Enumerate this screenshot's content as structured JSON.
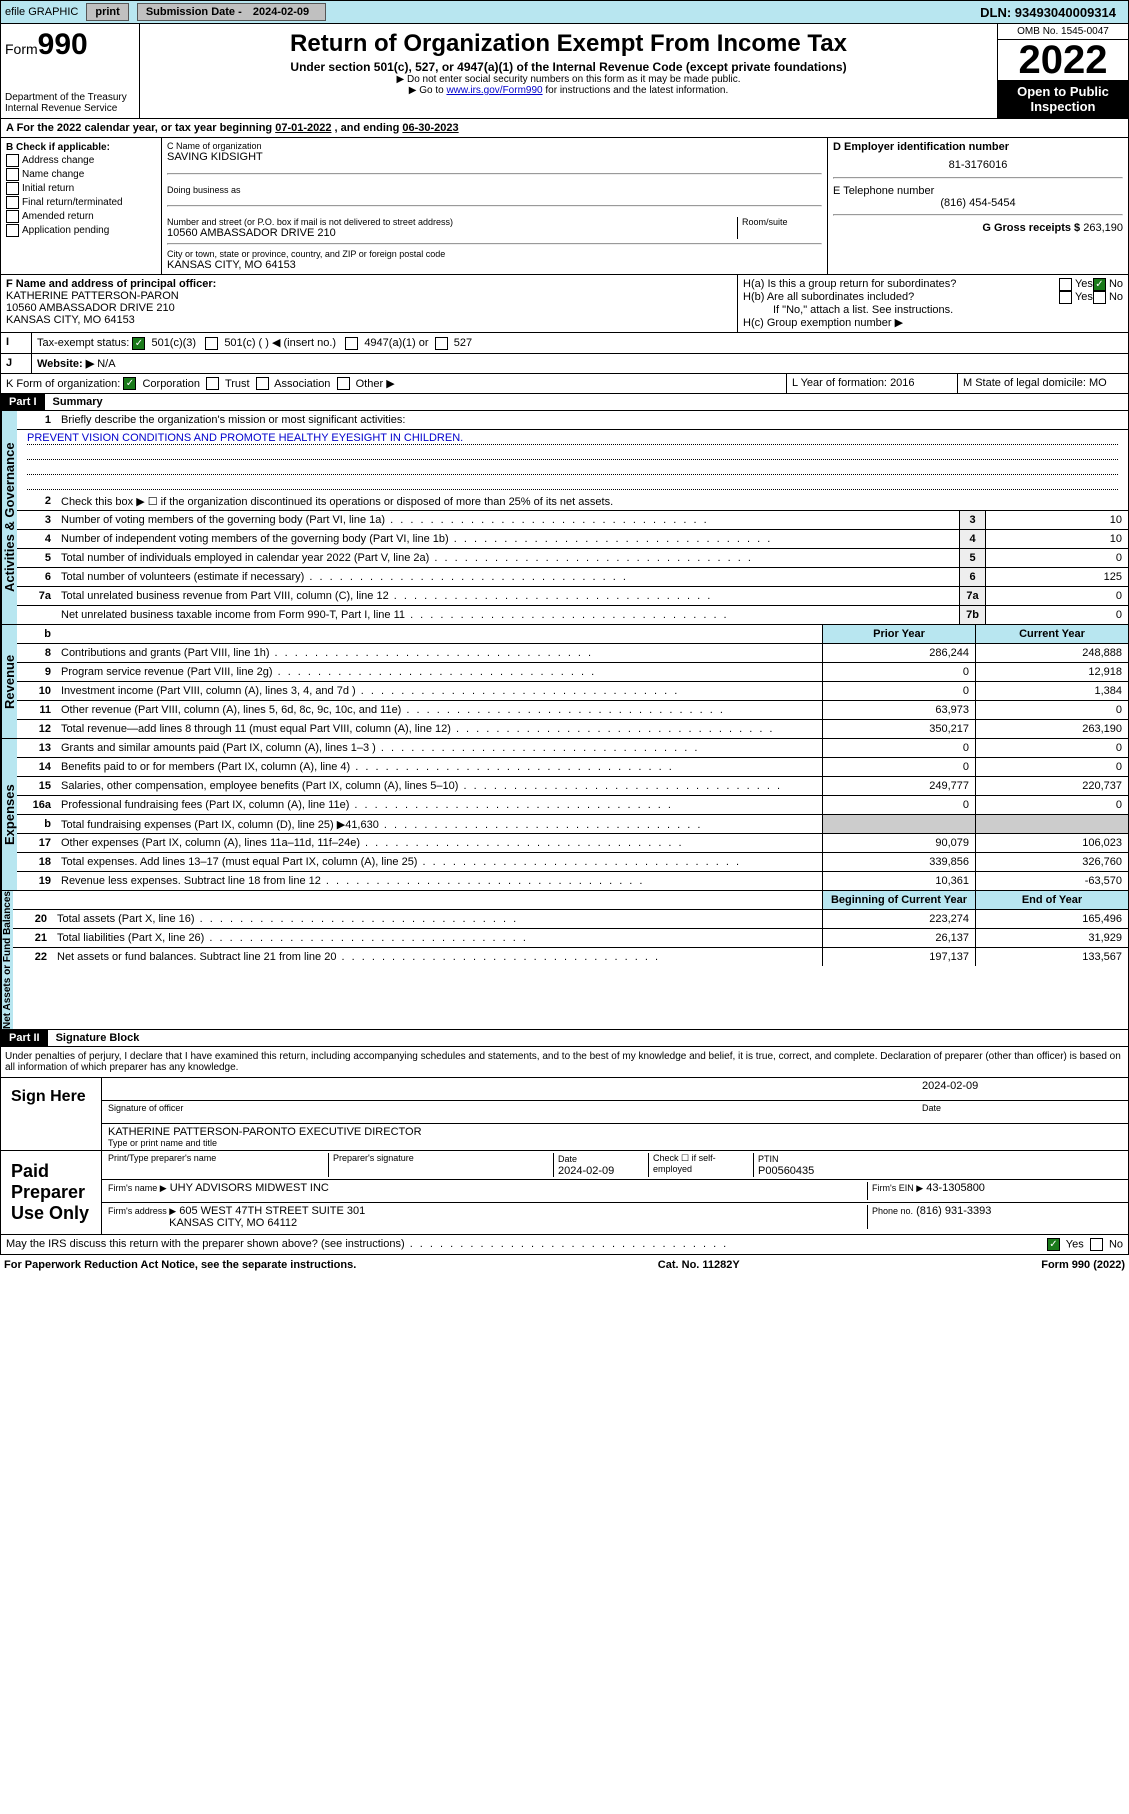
{
  "topbar": {
    "efile": "efile GRAPHIC",
    "print": "print",
    "subdate_lbl": "Submission Date - ",
    "subdate": "2024-02-09",
    "dln": "DLN: 93493040009314"
  },
  "hdr": {
    "form": "Form",
    "num": "990",
    "dept": "Department of the Treasury",
    "irs": "Internal Revenue Service",
    "title": "Return of Organization Exempt From Income Tax",
    "under": "Under section 501(c), 527, or 4947(a)(1) of the Internal Revenue Code (except private foundations)",
    "l1": "▶ Do not enter social security numbers on this form as it may be made public.",
    "l2_a": "▶ Go to ",
    "l2_link": "www.irs.gov/Form990",
    "l2_b": " for instructions and the latest information.",
    "omb": "OMB No. 1545-0047",
    "year": "2022",
    "inspect": "Open to Public Inspection"
  },
  "taxyear": {
    "a": "A For the 2022 calendar year, or tax year beginning ",
    "b": "07-01-2022",
    "c": " , and ending ",
    "d": "06-30-2023"
  },
  "B": {
    "hdr": "B Check if applicable:",
    "items": [
      "Address change",
      "Name change",
      "Initial return",
      "Final return/terminated",
      "Amended return",
      "Application pending"
    ]
  },
  "C": {
    "namelbl": "C Name of organization",
    "name": "SAVING KIDSIGHT",
    "dbalbl": "Doing business as",
    "addrlbl": "Number and street (or P.O. box if mail is not delivered to street address)",
    "roomlbl": "Room/suite",
    "addr": "10560 AMBASSADOR DRIVE 210",
    "citylbl": "City or town, state or province, country, and ZIP or foreign postal code",
    "city": "KANSAS CITY, MO  64153"
  },
  "D": {
    "lbl": "D Employer identification number",
    "val": "81-3176016"
  },
  "E": {
    "lbl": "E Telephone number",
    "val": "(816) 454-5454"
  },
  "G": {
    "lbl": "G Gross receipts $",
    "val": "263,190"
  },
  "F": {
    "lbl": "F  Name and address of principal officer:",
    "name": "KATHERINE PATTERSON-PARON",
    "addr": "10560 AMBASSADOR DRIVE 210",
    "city": "KANSAS CITY, MO  64153"
  },
  "H": {
    "a": "H(a)  Is this a group return for subordinates?",
    "b": "H(b)  Are all subordinates included?",
    "note": "If \"No,\" attach a list. See instructions.",
    "c": "H(c)  Group exemption number ▶",
    "yes": "Yes",
    "no": "No"
  },
  "I": {
    "lbl": "Tax-exempt status:",
    "o1": "501(c)(3)",
    "o2": "501(c) (   ) ◀ (insert no.)",
    "o3": "4947(a)(1) or",
    "o4": "527"
  },
  "J": {
    "lbl": "Website: ▶",
    "val": "N/A"
  },
  "K": {
    "lbl": "K Form of organization:",
    "o1": "Corporation",
    "o2": "Trust",
    "o3": "Association",
    "o4": "Other ▶"
  },
  "L": {
    "lbl": "L Year of formation:",
    "val": "2016"
  },
  "M": {
    "lbl": "M State of legal domicile:",
    "val": "MO"
  },
  "part1": {
    "hdr": "Part I",
    "title": "Summary"
  },
  "gov": {
    "l1": "Briefly describe the organization's mission or most significant activities:",
    "mission": "PREVENT VISION CONDITIONS AND PROMOTE HEALTHY EYESIGHT IN CHILDREN.",
    "l2": "Check this box ▶ ☐  if the organization discontinued its operations or disposed of more than 25% of its net assets.",
    "rows": [
      {
        "n": "3",
        "d": "Number of voting members of the governing body (Part VI, line 1a)",
        "b": "3",
        "v": "10"
      },
      {
        "n": "4",
        "d": "Number of independent voting members of the governing body (Part VI, line 1b)",
        "b": "4",
        "v": "10"
      },
      {
        "n": "5",
        "d": "Total number of individuals employed in calendar year 2022 (Part V, line 2a)",
        "b": "5",
        "v": "0"
      },
      {
        "n": "6",
        "d": "Total number of volunteers (estimate if necessary)",
        "b": "6",
        "v": "125"
      },
      {
        "n": "7a",
        "d": "Total unrelated business revenue from Part VIII, column (C), line 12",
        "b": "7a",
        "v": "0"
      },
      {
        "n": "",
        "d": "Net unrelated business taxable income from Form 990-T, Part I, line 11",
        "b": "7b",
        "v": "0"
      }
    ],
    "side": "Activities & Governance"
  },
  "rev": {
    "side": "Revenue",
    "hdr_b": "b",
    "prior": "Prior Year",
    "curr": "Current Year",
    "rows": [
      {
        "n": "8",
        "d": "Contributions and grants (Part VIII, line 1h)",
        "p": "286,244",
        "c": "248,888"
      },
      {
        "n": "9",
        "d": "Program service revenue (Part VIII, line 2g)",
        "p": "0",
        "c": "12,918"
      },
      {
        "n": "10",
        "d": "Investment income (Part VIII, column (A), lines 3, 4, and 7d )",
        "p": "0",
        "c": "1,384"
      },
      {
        "n": "11",
        "d": "Other revenue (Part VIII, column (A), lines 5, 6d, 8c, 9c, 10c, and 11e)",
        "p": "63,973",
        "c": "0"
      },
      {
        "n": "12",
        "d": "Total revenue—add lines 8 through 11 (must equal Part VIII, column (A), line 12)",
        "p": "350,217",
        "c": "263,190"
      }
    ]
  },
  "exp": {
    "side": "Expenses",
    "rows": [
      {
        "n": "13",
        "d": "Grants and similar amounts paid (Part IX, column (A), lines 1–3 )",
        "p": "0",
        "c": "0"
      },
      {
        "n": "14",
        "d": "Benefits paid to or for members (Part IX, column (A), line 4)",
        "p": "0",
        "c": "0"
      },
      {
        "n": "15",
        "d": "Salaries, other compensation, employee benefits (Part IX, column (A), lines 5–10)",
        "p": "249,777",
        "c": "220,737"
      },
      {
        "n": "16a",
        "d": "Professional fundraising fees (Part IX, column (A), line 11e)",
        "p": "0",
        "c": "0"
      },
      {
        "n": "b",
        "d": "Total fundraising expenses (Part IX, column (D), line 25) ▶41,630",
        "p": "",
        "c": "",
        "grey": true
      },
      {
        "n": "17",
        "d": "Other expenses (Part IX, column (A), lines 11a–11d, 11f–24e)",
        "p": "90,079",
        "c": "106,023"
      },
      {
        "n": "18",
        "d": "Total expenses. Add lines 13–17 (must equal Part IX, column (A), line 25)",
        "p": "339,856",
        "c": "326,760"
      },
      {
        "n": "19",
        "d": "Revenue less expenses. Subtract line 18 from line 12",
        "p": "10,361",
        "c": "-63,570"
      }
    ]
  },
  "net": {
    "side": "Net Assets or Fund Balances",
    "begin": "Beginning of Current Year",
    "end": "End of Year",
    "rows": [
      {
        "n": "20",
        "d": "Total assets (Part X, line 16)",
        "p": "223,274",
        "c": "165,496"
      },
      {
        "n": "21",
        "d": "Total liabilities (Part X, line 26)",
        "p": "26,137",
        "c": "31,929"
      },
      {
        "n": "22",
        "d": "Net assets or fund balances. Subtract line 21 from line 20",
        "p": "197,137",
        "c": "133,567"
      }
    ]
  },
  "part2": {
    "hdr": "Part II",
    "title": "Signature Block",
    "decl": "Under penalties of perjury, I declare that I have examined this return, including accompanying schedules and statements, and to the best of my knowledge and belief, it is true, correct, and complete. Declaration of preparer (other than officer) is based on all information of which preparer has any knowledge."
  },
  "sign": {
    "lbl": "Sign Here",
    "siglbl": "Signature of officer",
    "datelbl": "Date",
    "date": "2024-02-09",
    "name": "KATHERINE PATTERSON-PARONTO  EXECUTIVE DIRECTOR",
    "typelbl": "Type or print name and title"
  },
  "prep": {
    "lbl": "Paid Preparer Use Only",
    "h1": "Print/Type preparer's name",
    "h2": "Preparer's signature",
    "h3": "Date",
    "h4": "Check ☐ if self-employed",
    "h5": "PTIN",
    "date": "2024-02-09",
    "ptin": "P00560435",
    "firmlbl": "Firm's name   ▶",
    "firm": "UHY ADVISORS MIDWEST INC",
    "einlbl": "Firm's EIN ▶",
    "ein": "43-1305800",
    "addrlbl": "Firm's address ▶",
    "addr": "605 WEST 47TH STREET SUITE 301",
    "city": "KANSAS CITY, MO  64112",
    "phonelbl": "Phone no.",
    "phone": "(816) 931-3393"
  },
  "discuss": {
    "q": "May the IRS discuss this return with the preparer shown above? (see instructions)",
    "yes": "Yes",
    "no": "No"
  },
  "foot": {
    "l": "For Paperwork Reduction Act Notice, see the separate instructions.",
    "c": "Cat. No. 11282Y",
    "r": "Form 990 (2022)"
  }
}
